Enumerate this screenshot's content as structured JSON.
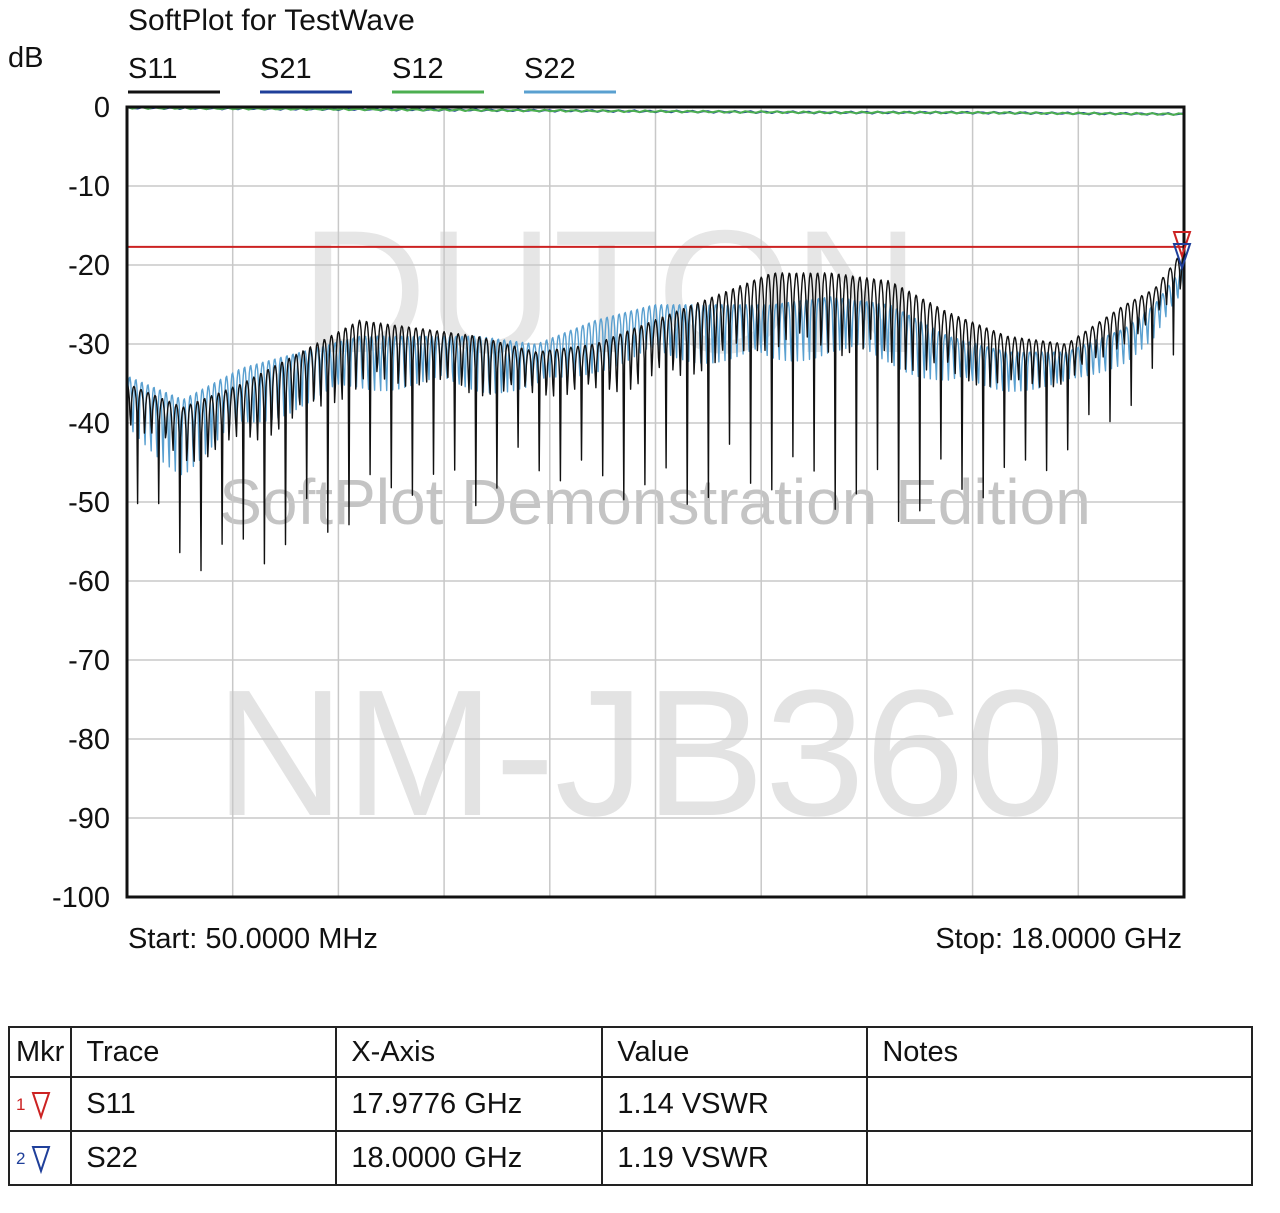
{
  "chart_data": {
    "type": "line",
    "title": "SoftPlot for TestWave",
    "ylabel": "dB",
    "xlabel": "",
    "x_start_label": "Start: 50.0000 MHz",
    "x_stop_label": "Stop: 18.0000 GHz",
    "x_range_ghz": [
      0.05,
      18.0
    ],
    "ylim": [
      -100,
      0
    ],
    "y_ticks": [
      0,
      -10,
      -20,
      -30,
      -40,
      -50,
      -60,
      -70,
      -80,
      -90,
      -100
    ],
    "x_grid_divisions": 10,
    "grid": true,
    "legend_position": "top",
    "limit_line": {
      "value_db": -17.7,
      "color": "#cc2222"
    },
    "series": [
      {
        "name": "S11",
        "color": "#111111",
        "x_ghz": [
          0.05,
          1.0,
          2.0,
          3.0,
          4.0,
          5.0,
          6.0,
          7.0,
          8.0,
          9.0,
          10.0,
          11.0,
          12.0,
          13.0,
          14.0,
          15.0,
          16.0,
          17.0,
          17.5,
          18.0
        ],
        "peak_db": [
          -35,
          -38,
          -35,
          -31,
          -27,
          -28,
          -29,
          -31,
          -30,
          -27,
          -24,
          -21,
          -21,
          -22,
          -26,
          -29,
          -30,
          -25,
          -23,
          -18
        ],
        "dip_db": [
          -48,
          -58,
          -58,
          -56,
          -52,
          -48,
          -50,
          -46,
          -48,
          -50,
          -50,
          -48,
          -50,
          -53,
          -50,
          -48,
          -44,
          -38,
          -35,
          -30
        ]
      },
      {
        "name": "S21",
        "color": "#1f3f9a",
        "x_ghz": [
          0.05,
          2.0,
          4.0,
          6.0,
          8.0,
          10.0,
          12.0,
          14.0,
          16.0,
          18.0
        ],
        "values_db": [
          -0.1,
          -0.2,
          -0.3,
          -0.4,
          -0.5,
          -0.6,
          -0.7,
          -0.7,
          -0.8,
          -0.9
        ]
      },
      {
        "name": "S12",
        "color": "#4caf50",
        "x_ghz": [
          0.05,
          2.0,
          4.0,
          6.0,
          8.0,
          10.0,
          12.0,
          14.0,
          16.0,
          18.0
        ],
        "values_db": [
          -0.1,
          -0.2,
          -0.3,
          -0.4,
          -0.5,
          -0.6,
          -0.7,
          -0.7,
          -0.8,
          -0.9
        ]
      },
      {
        "name": "S22",
        "color": "#5aa0d0",
        "x_ghz": [
          0.05,
          1.0,
          2.0,
          3.0,
          4.0,
          5.0,
          6.0,
          7.0,
          8.0,
          9.0,
          10.0,
          11.0,
          12.0,
          13.0,
          14.0,
          15.0,
          16.0,
          17.0,
          17.5,
          18.0
        ],
        "peak_db": [
          -34,
          -37,
          -33,
          -31,
          -29,
          -29,
          -29,
          -30,
          -27,
          -25,
          -25,
          -25,
          -24,
          -25,
          -29,
          -31,
          -31,
          -28,
          -25,
          -20
        ],
        "dip_db": [
          -60,
          -66,
          -58,
          -52,
          -50,
          -48,
          -50,
          -48,
          -46,
          -46,
          -47,
          -48,
          -46,
          -48,
          -48,
          -45,
          -44,
          -40,
          -38,
          -30
        ]
      }
    ],
    "watermarks": [
      "DUTON",
      "SoftPlot Demonstration Edition",
      "NM-JB360"
    ]
  },
  "markers": {
    "headers": [
      "Mkr",
      "Trace",
      "X-Axis",
      "Value",
      "Notes"
    ],
    "rows": [
      {
        "mkr": "1",
        "color": "#cc2222",
        "trace": "S11",
        "x_axis": "17.9776 GHz",
        "value": "1.14 VSWR",
        "notes": ""
      },
      {
        "mkr": "2",
        "color": "#1f3f9a",
        "trace": "S22",
        "x_axis": "18.0000 GHz",
        "value": "1.19 VSWR",
        "notes": ""
      }
    ]
  }
}
